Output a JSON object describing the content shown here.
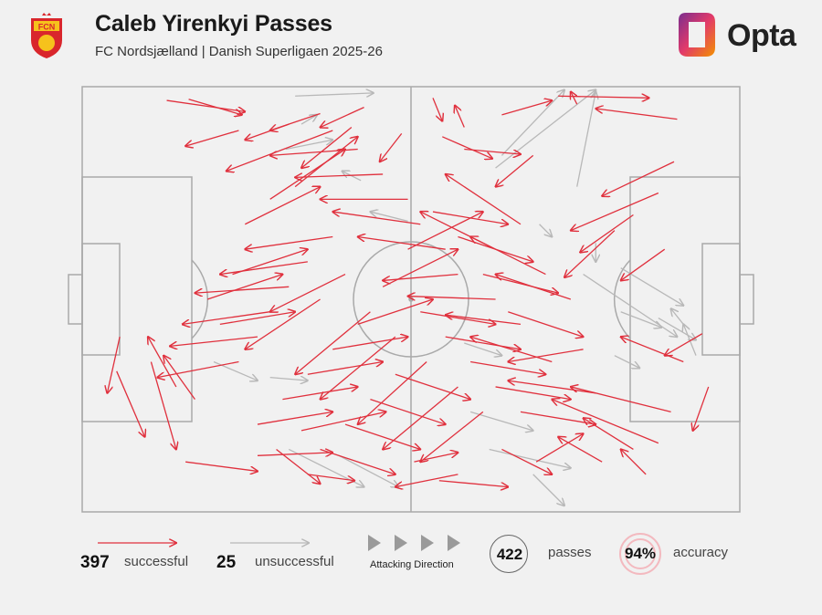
{
  "header": {
    "title": "Caleb Yirenkyi Passes",
    "subtitle": "FC Nordsjælland | Danish Superligaen 2025-26",
    "crest_text": "FCN",
    "brand": "Opta"
  },
  "legend": {
    "successful_count": "397",
    "successful_label": "successful",
    "unsuccessful_count": "25",
    "unsuccessful_label": "unsuccessful",
    "direction_label": "Attacking Direction",
    "passes_count": "422",
    "passes_label": "passes",
    "accuracy_value": "94%",
    "accuracy_label": "accuracy"
  },
  "colors": {
    "successful": "#e0303d",
    "unsuccessful": "#b8b8b8",
    "pitch_lines": "#a9a9a9",
    "brand_orange": "#f39200",
    "brand_purple": "#7a2e8f",
    "crest_red": "#d9262c",
    "crest_yellow": "#f6c21c"
  },
  "chart_data": {
    "type": "pass_map",
    "pitch": {
      "length": 105,
      "width": 68
    },
    "attacking_direction": "left-to-right",
    "successful_total": 397,
    "unsuccessful_total": 25,
    "passes_total": 422,
    "accuracy_pct": 94,
    "sample_passes": {
      "successful": [
        [
          13.5,
          2.2,
          26.0,
          4.0
        ],
        [
          17.0,
          2.0,
          25.5,
          4.5
        ],
        [
          76.0,
          1.5,
          90.5,
          1.8
        ],
        [
          79.0,
          2.8,
          78.0,
          0.8
        ],
        [
          95.0,
          5.2,
          82.0,
          3.5
        ],
        [
          67.0,
          4.5,
          75.0,
          2.2
        ],
        [
          56.0,
          1.8,
          57.5,
          5.5
        ],
        [
          61.0,
          6.5,
          59.5,
          3.0
        ],
        [
          45.0,
          3.3,
          38.0,
          6.5
        ],
        [
          38.0,
          4.3,
          30.0,
          7.0
        ],
        [
          33.0,
          6.0,
          26.0,
          8.5
        ],
        [
          25.0,
          7.0,
          16.5,
          9.5
        ],
        [
          40.0,
          7.0,
          23.0,
          13.5
        ],
        [
          43.0,
          6.5,
          35.0,
          13.0
        ],
        [
          51.0,
          7.5,
          47.5,
          12.0
        ],
        [
          57.5,
          8.0,
          65.5,
          11.5
        ],
        [
          61.0,
          10.0,
          70.0,
          10.8
        ],
        [
          72.0,
          11.0,
          66.0,
          16.0
        ],
        [
          94.5,
          12.0,
          83.0,
          17.5
        ],
        [
          92.0,
          17.0,
          78.0,
          23.0
        ],
        [
          88.0,
          20.5,
          79.5,
          26.5
        ],
        [
          85.0,
          23.0,
          77.0,
          30.5
        ],
        [
          93.0,
          26.0,
          86.0,
          31.0
        ],
        [
          99.0,
          39.5,
          93.0,
          43.0
        ],
        [
          100.0,
          48.0,
          97.5,
          55.0
        ],
        [
          96.0,
          44.0,
          86.0,
          40.0
        ],
        [
          94.0,
          52.0,
          78.0,
          48.0
        ],
        [
          88.0,
          58.0,
          80.0,
          53.0
        ],
        [
          90.0,
          62.0,
          86.0,
          58.0
        ],
        [
          92.0,
          57.0,
          75.0,
          50.0
        ],
        [
          83.0,
          60.0,
          76.0,
          56.0
        ],
        [
          11.0,
          44.0,
          15.0,
          58.0
        ],
        [
          5.5,
          45.5,
          10.0,
          56.0
        ],
        [
          6.0,
          40.0,
          4.0,
          49.0
        ],
        [
          15.0,
          48.0,
          10.5,
          40.0
        ],
        [
          18.0,
          50.0,
          13.0,
          43.0
        ],
        [
          16.5,
          60.0,
          28.0,
          61.5
        ],
        [
          28.0,
          59.0,
          40.0,
          58.5
        ],
        [
          36.0,
          62.0,
          43.5,
          63.0
        ],
        [
          31.0,
          58.0,
          38.0,
          63.5
        ],
        [
          35.0,
          55.0,
          48.5,
          52.0
        ],
        [
          53.0,
          60.0,
          60.0,
          58.5
        ],
        [
          57.0,
          63.0,
          68.0,
          64.0
        ],
        [
          60.0,
          62.0,
          50.0,
          64.0
        ],
        [
          67.0,
          58.0,
          75.0,
          62.0
        ],
        [
          72.5,
          60.0,
          80.0,
          55.5
        ],
        [
          82.0,
          49.0,
          68.0,
          47.0
        ],
        [
          75.0,
          44.0,
          62.0,
          40.0
        ],
        [
          70.0,
          38.0,
          58.0,
          36.5
        ],
        [
          66.0,
          34.0,
          52.0,
          33.5
        ],
        [
          60.0,
          30.0,
          48.0,
          31.0
        ],
        [
          58.0,
          26.0,
          44.0,
          24.0
        ],
        [
          54.0,
          22.0,
          40.0,
          20.0
        ],
        [
          52.0,
          18.0,
          38.0,
          18.0
        ],
        [
          48.0,
          14.0,
          34.0,
          14.5
        ],
        [
          44.0,
          10.0,
          30.0,
          11.0
        ],
        [
          40.0,
          24.0,
          26.0,
          26.0
        ],
        [
          36.0,
          28.0,
          22.0,
          30.0
        ],
        [
          33.0,
          32.0,
          18.0,
          33.0
        ],
        [
          30.0,
          36.0,
          16.0,
          38.0
        ],
        [
          28.0,
          40.0,
          14.0,
          41.5
        ],
        [
          25.0,
          44.0,
          12.0,
          46.5
        ],
        [
          38.0,
          34.0,
          26.0,
          42.0
        ],
        [
          42.0,
          30.0,
          30.0,
          36.0
        ],
        [
          46.0,
          36.0,
          34.0,
          46.0
        ],
        [
          50.0,
          40.0,
          38.0,
          50.0
        ],
        [
          55.0,
          44.0,
          44.0,
          54.0
        ],
        [
          60.0,
          48.0,
          48.0,
          58.0
        ],
        [
          64.0,
          52.0,
          54.0,
          60.0
        ],
        [
          68.0,
          36.0,
          80.0,
          40.0
        ],
        [
          64.0,
          30.0,
          76.0,
          33.0
        ],
        [
          60.0,
          24.0,
          72.0,
          28.0
        ],
        [
          56.0,
          20.0,
          68.0,
          22.0
        ],
        [
          52.0,
          26.0,
          64.0,
          20.0
        ],
        [
          48.0,
          32.0,
          60.0,
          26.0
        ],
        [
          44.0,
          38.0,
          56.0,
          34.0
        ],
        [
          40.0,
          42.0,
          52.0,
          40.0
        ],
        [
          36.0,
          46.0,
          48.0,
          44.0
        ],
        [
          32.0,
          50.0,
          44.0,
          48.0
        ],
        [
          28.0,
          54.0,
          40.0,
          52.0
        ],
        [
          24.0,
          30.0,
          36.0,
          26.0
        ],
        [
          20.0,
          34.0,
          32.0,
          30.0
        ],
        [
          22.0,
          38.0,
          34.0,
          36.0
        ],
        [
          26.0,
          22.0,
          38.0,
          16.0
        ],
        [
          30.0,
          18.0,
          42.0,
          10.0
        ],
        [
          34.0,
          16.0,
          44.0,
          8.0
        ],
        [
          58.0,
          40.0,
          70.0,
          42.0
        ],
        [
          62.0,
          44.0,
          74.0,
          46.0
        ],
        [
          66.0,
          48.0,
          78.0,
          50.0
        ],
        [
          70.0,
          52.0,
          82.0,
          54.0
        ],
        [
          54.0,
          36.0,
          66.0,
          38.0
        ],
        [
          50.0,
          46.0,
          62.0,
          50.0
        ],
        [
          46.0,
          50.0,
          58.0,
          54.0
        ],
        [
          42.0,
          54.0,
          54.0,
          58.0
        ],
        [
          38.0,
          58.0,
          50.0,
          62.0
        ],
        [
          66.0,
          26.0,
          54.0,
          20.0
        ],
        [
          70.0,
          22.0,
          58.0,
          14.0
        ],
        [
          74.0,
          30.0,
          62.0,
          24.0
        ],
        [
          78.0,
          34.0,
          66.0,
          30.0
        ],
        [
          80.0,
          42.0,
          68.0,
          44.0
        ]
      ],
      "unsuccessful": [
        [
          34.0,
          1.5,
          46.5,
          1.0
        ],
        [
          67.0,
          11.0,
          77.0,
          0.5
        ],
        [
          66.0,
          13.0,
          82.0,
          0.5
        ],
        [
          79.0,
          16.0,
          82.0,
          0.8
        ],
        [
          32.5,
          10.0,
          40.0,
          8.5
        ],
        [
          35.0,
          6.0,
          37.5,
          4.5
        ],
        [
          44.5,
          15.0,
          41.5,
          13.5
        ],
        [
          52.0,
          21.5,
          46.0,
          20.0
        ],
        [
          86.0,
          29.0,
          96.0,
          35.0
        ],
        [
          92.0,
          37.0,
          98.0,
          40.5
        ],
        [
          80.0,
          30.0,
          95.0,
          40.0
        ],
        [
          98.0,
          43.0,
          96.0,
          38.0
        ],
        [
          96.0,
          38.0,
          94.0,
          35.5
        ],
        [
          86.0,
          36.0,
          92.5,
          38.5
        ],
        [
          33.0,
          58.0,
          45.0,
          64.0
        ],
        [
          41.0,
          59.0,
          50.5,
          64.0
        ],
        [
          65.0,
          58.0,
          78.0,
          61.0
        ],
        [
          72.0,
          62.0,
          77.0,
          67.0
        ],
        [
          62.0,
          52.0,
          72.0,
          55.0
        ],
        [
          21.0,
          44.0,
          28.0,
          47.0
        ],
        [
          82.0,
          25.0,
          82.0,
          28.0
        ],
        [
          73.0,
          22.0,
          75.0,
          24.0
        ],
        [
          85.0,
          43.0,
          89.0,
          45.0
        ],
        [
          30.0,
          46.5,
          36.0,
          47.0
        ],
        [
          61.0,
          41.0,
          67.0,
          43.0
        ]
      ]
    }
  }
}
